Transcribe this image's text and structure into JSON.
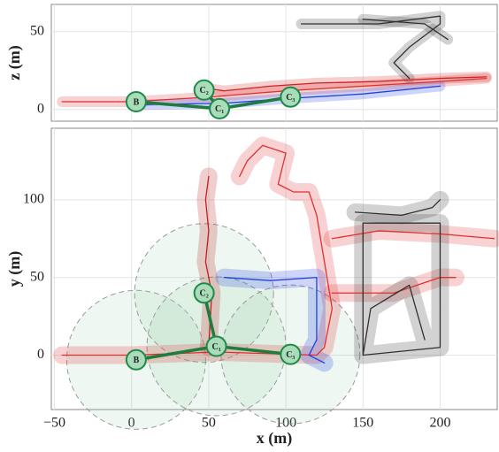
{
  "chart_data": [
    {
      "type": "line",
      "ylabel": "z (m)",
      "xlim": [
        -52,
        237
      ],
      "ylim": [
        -7.5,
        67.5
      ],
      "yticks": [
        0,
        50
      ],
      "grid": true,
      "series": [
        {
          "color": "#e03030",
          "x": [
            -45,
            0,
            50,
            100,
            150,
            200,
            230
          ],
          "values": [
            5,
            5,
            8,
            12,
            15,
            18,
            20
          ]
        },
        {
          "color": "#d02020",
          "x": [
            45,
            60,
            90,
            120,
            160,
            200,
            230
          ],
          "values": [
            14,
            12,
            15,
            17,
            18,
            20,
            21
          ]
        },
        {
          "color": "#2040e0",
          "x": [
            0,
            60,
            100,
            150,
            200
          ],
          "values": [
            3,
            4,
            7,
            10,
            15
          ]
        },
        {
          "color": "#303030",
          "x": [
            110,
            160,
            200,
            200,
            180,
            170,
            180
          ],
          "values": [
            55,
            55,
            60,
            55,
            40,
            30,
            20
          ]
        },
        {
          "color": "#303030",
          "x": [
            150,
            190,
            205
          ],
          "values": [
            58,
            55,
            45
          ]
        }
      ],
      "nodes": {
        "labels": [
          "B",
          "C₁",
          "C₂",
          "C₃"
        ],
        "x": [
          3,
          57,
          47,
          103
        ],
        "values": [
          5,
          0.5,
          12.5,
          8
        ]
      }
    },
    {
      "type": "line",
      "xlabel": "x (m)",
      "ylabel": "y (m)",
      "xlim": [
        -52,
        237
      ],
      "ylim": [
        -35,
        146
      ],
      "xticks": [
        {
          "value": -50,
          "label": "−50"
        },
        0,
        50,
        100,
        150,
        200
      ],
      "yticks": [
        0,
        50,
        100
      ],
      "grid": true,
      "coverage_radius": 45,
      "series": [
        {
          "color": "#e03030",
          "x": [
            -45,
            0,
            55,
            120,
            125,
            130,
            125,
            120,
            115,
            105,
            95,
            100,
            85,
            75,
            70
          ],
          "values": [
            0,
            0,
            2,
            0,
            5,
            30,
            60,
            90,
            105,
            105,
            110,
            130,
            135,
            125,
            115
          ]
        },
        {
          "color": "#c02020",
          "x": [
            50,
            52,
            48,
            50,
            48,
            50
          ],
          "values": [
            5,
            40,
            60,
            80,
            100,
            115
          ]
        },
        {
          "color": "#e03030",
          "x": [
            130,
            160,
            200,
            235
          ],
          "values": [
            75,
            80,
            78,
            75
          ]
        },
        {
          "color": "#e03030",
          "x": [
            130,
            170,
            200,
            210
          ],
          "values": [
            40,
            40,
            50,
            50
          ]
        },
        {
          "color": "#2040e0",
          "x": [
            60,
            90,
            120,
            120,
            115,
            125
          ],
          "values": [
            50,
            48,
            50,
            10,
            0,
            -5
          ]
        },
        {
          "color": "#303030",
          "x": [
            150,
            150,
            200,
            200,
            150,
            155,
            180,
            190
          ],
          "values": [
            0,
            85,
            85,
            5,
            0,
            30,
            45,
            10
          ]
        },
        {
          "color": "#303030",
          "x": [
            145,
            175,
            195,
            200
          ],
          "values": [
            92,
            90,
            95,
            100
          ]
        }
      ],
      "nodes": {
        "labels": [
          "B",
          "C₁",
          "C₂",
          "C₃"
        ],
        "x": [
          3,
          55,
          47,
          103
        ],
        "values": [
          -3,
          5.7,
          40,
          0.5
        ]
      }
    }
  ]
}
